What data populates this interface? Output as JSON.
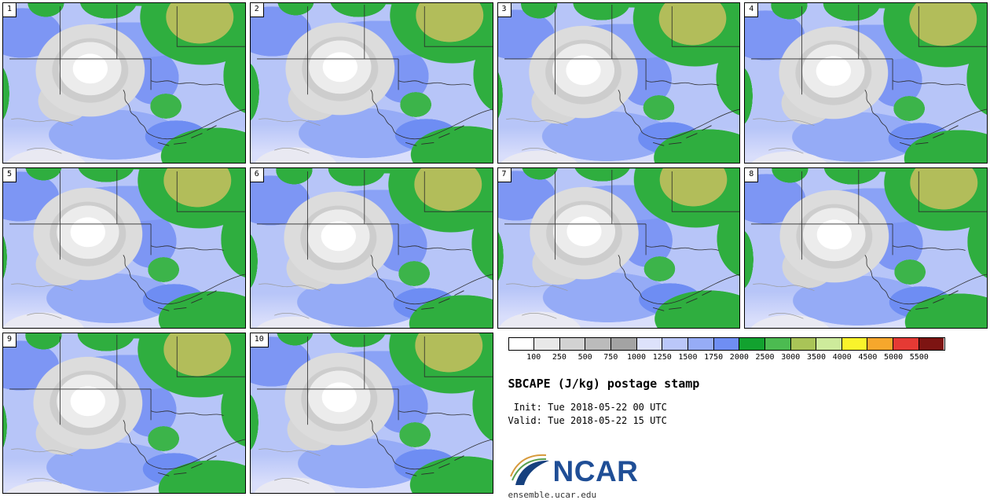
{
  "header": {
    "title": "SBCAPE (J/kg) postage stamp"
  },
  "times": {
    "init": " Init: Tue 2018-05-22 00 UTC",
    "valid": "Valid: Tue 2018-05-22 15 UTC"
  },
  "branding": {
    "logo_text": "NCAR",
    "site": "ensemble.ucar.edu"
  },
  "panels": [
    "1",
    "2",
    "3",
    "4",
    "5",
    "6",
    "7",
    "8",
    "9",
    "10"
  ],
  "chart_data": {
    "type": "heatmap",
    "title": "SBCAPE (J/kg) postage stamp",
    "variable": "SBCAPE",
    "units": "J/kg",
    "init_time": "Tue 2018-05-22 00 UTC",
    "valid_time": "Tue 2018-05-22 15 UTC",
    "ensemble_members": [
      1,
      2,
      3,
      4,
      5,
      6,
      7,
      8,
      9,
      10
    ],
    "colorbar_levels": [
      100,
      250,
      500,
      750,
      1000,
      1250,
      1500,
      1750,
      2000,
      2500,
      3000,
      3500,
      4000,
      4500,
      5000,
      5500
    ],
    "colorbar_colors": [
      "#ffffff",
      "#e8e8e8",
      "#d2d2d2",
      "#bbbbbb",
      "#a3a3a3",
      "#dde2fb",
      "#bac7f9",
      "#96acf6",
      "#6f8ef3",
      "#12a22f",
      "#4cbb51",
      "#a9c457",
      "#cdeb9b",
      "#f9f32b",
      "#f6a72c",
      "#e53a34",
      "#7d1412"
    ],
    "legend_position": "bottom-right"
  }
}
